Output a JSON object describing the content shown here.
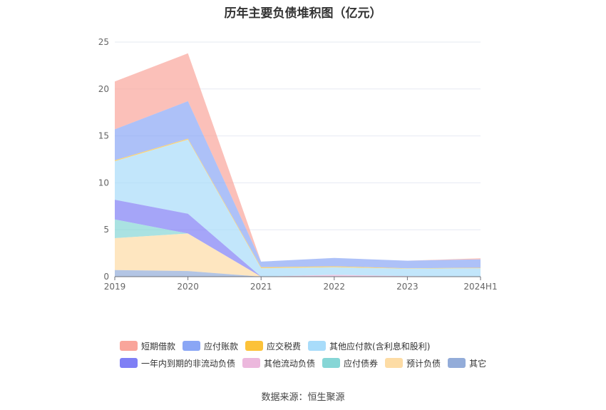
{
  "chart_data": {
    "type": "area",
    "title": "历年主要负债堆积图（亿元）",
    "categories": [
      "2019",
      "2020",
      "2021",
      "2022",
      "2023",
      "2024H1"
    ],
    "ylim": [
      0,
      25
    ],
    "yticks": [
      "0",
      "5",
      "10",
      "15",
      "20",
      "25"
    ],
    "grid": true,
    "legend_position": "bottom",
    "stack_order_bottom_to_top": [
      "其它",
      "预计负债",
      "应付债券",
      "其他流动负债",
      "一年内到期的非流动负债",
      "其他应付款(含利息和股利)",
      "应交税费",
      "应付账款",
      "短期借款"
    ],
    "series": [
      {
        "name": "短期借款",
        "color": "#f9a59b",
        "values": [
          5.1,
          5.1,
          0,
          0,
          0,
          0.1
        ]
      },
      {
        "name": "应付账款",
        "color": "#8aa6f5",
        "values": [
          3.3,
          4.0,
          0.6,
          0.9,
          0.8,
          0.9
        ]
      },
      {
        "name": "应交税费",
        "color": "#fcc239",
        "values": [
          0.1,
          0.1,
          0.1,
          0.1,
          0.05,
          0.05
        ]
      },
      {
        "name": "其他应付款(含利息和股利)",
        "color": "#a8dcfa",
        "values": [
          4.1,
          7.9,
          0.9,
          0.8,
          0.8,
          0.9
        ]
      },
      {
        "name": "一年内到期的非流动负债",
        "color": "#7f7ff5",
        "values": [
          2.1,
          2.1,
          0,
          0,
          0,
          0
        ]
      },
      {
        "name": "其他流动负债",
        "color": "#ecb8dd",
        "values": [
          0,
          0,
          0,
          0.2,
          0.05,
          0
        ]
      },
      {
        "name": "应付债券",
        "color": "#86d6d6",
        "values": [
          2.0,
          0,
          0,
          0,
          0,
          0
        ]
      },
      {
        "name": "预计负债",
        "color": "#fddca5",
        "values": [
          3.4,
          4.0,
          0,
          0,
          0,
          0
        ]
      },
      {
        "name": "其它",
        "color": "#93acd9",
        "values": [
          0.7,
          0.6,
          0,
          0,
          0,
          0
        ]
      }
    ]
  },
  "legend_rows": [
    [
      {
        "label": "短期借款",
        "color": "#f9a59b"
      },
      {
        "label": "应付账款",
        "color": "#8aa6f5"
      },
      {
        "label": "应交税费",
        "color": "#fcc239"
      },
      {
        "label": "其他应付款(含利息和股利)",
        "color": "#a8dcfa"
      }
    ],
    [
      {
        "label": "一年内到期的非流动负债",
        "color": "#7f7ff5"
      },
      {
        "label": "其他流动负债",
        "color": "#ecb8dd"
      },
      {
        "label": "应付债券",
        "color": "#86d6d6"
      },
      {
        "label": "预计负债",
        "color": "#fddca5"
      },
      {
        "label": "其它",
        "color": "#93acd9"
      }
    ]
  ],
  "source": "数据来源：恒生聚源"
}
